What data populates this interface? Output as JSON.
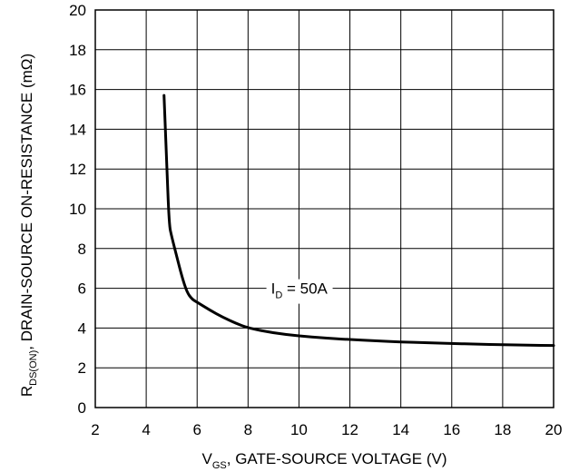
{
  "chart_data": {
    "type": "line",
    "title": "",
    "xlabel": {
      "prefix": "V",
      "sub": "GS",
      "suffix": ", GATE-SOURCE VOLTAGE (V)"
    },
    "ylabel": {
      "prefix": "R",
      "sub": "DS(ON)",
      "suffix": ", DRAIN-SOURCE ON-RESISTANCE (mΩ)"
    },
    "xlim": [
      2,
      20
    ],
    "ylim": [
      0,
      20
    ],
    "x_ticks": [
      "2",
      "4",
      "6",
      "8",
      "10",
      "12",
      "14",
      "16",
      "18",
      "20"
    ],
    "y_ticks": [
      "0",
      "2",
      "4",
      "6",
      "8",
      "10",
      "12",
      "14",
      "16",
      "18",
      "20"
    ],
    "grid": true,
    "annotation": {
      "prefix": "I",
      "sub": "D",
      "suffix": " = 50A"
    },
    "series": [
      {
        "x": [
          4.7,
          4.8,
          4.9,
          5.0,
          5.2,
          5.4,
          5.6,
          5.8,
          6.0,
          6.5,
          7.0,
          7.5,
          8.0,
          9.0,
          10.0,
          11.0,
          12.0,
          13.0,
          14.0,
          15.0,
          16.0,
          17.0,
          18.0,
          19.0,
          20.0
        ],
        "y": [
          15.7,
          12.5,
          9.2,
          8.6,
          7.6,
          6.6,
          5.8,
          5.45,
          5.3,
          4.9,
          4.55,
          4.25,
          4.0,
          3.75,
          3.6,
          3.5,
          3.42,
          3.36,
          3.3,
          3.26,
          3.22,
          3.19,
          3.16,
          3.14,
          3.12
        ]
      }
    ]
  }
}
